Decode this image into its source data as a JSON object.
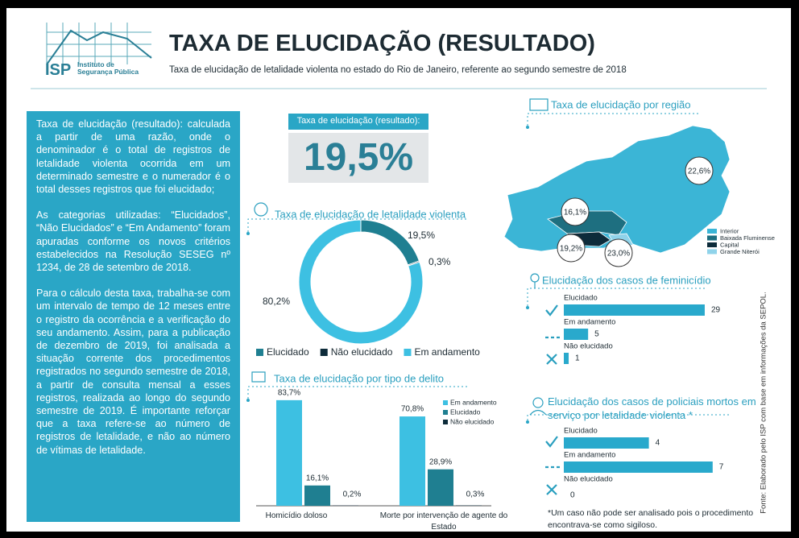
{
  "header": {
    "org_short": "ISP",
    "org_name": "Instituto de Segurança Pública",
    "title": "TAXA DE ELUCIDAÇÃO (RESULTADO)",
    "subtitle": "Taxa de elucidação de letalidade violenta no estado do Rio de Janeiro, referente ao segundo semestre de 2018"
  },
  "sidebar": {
    "paragraphs": [
      "Taxa de elucidação (resultado): calculada a partir de uma razão, onde o denominador é o total de registros de letalidade violenta ocorrida em um determinado semestre e o numerador é o total desses registros que foi elucidado;",
      "As categorias utilizadas: “Elucidados”, “Não Elucidados” e “Em Andamento” foram apuradas conforme os novos critérios estabelecidos na Resolução SESEG nº 1234, de 28 de setembro de 2018.",
      "Para o cálculo desta taxa, trabalha-se com um intervalo de tempo de 12 meses entre o registro da ocorrência e a verificação do seu andamento. Assim, para a publicação de dezembro de 2019, foi analisada a situação corrente dos procedimentos registrados no segundo semestre de 2018, a partir de consulta mensal a esses registros, realizada ao longo do segundo semestre de 2019. É importante reforçar que a taxa refere-se ao número de registros de letalidade, e não ao número de vítimas de letalidade."
    ]
  },
  "kpi": {
    "label": "Taxa de elucidação (resultado):",
    "value": "19,5%"
  },
  "source": "Fonte: Elaborado pelo ISP com base em informações da SEPOL.",
  "chart_data": [
    {
      "type": "donut",
      "title": "Taxa de elucidação de letalidade violenta",
      "categories": [
        "Elucidado",
        "Não elucidado",
        "Em andamento"
      ],
      "values": [
        19.5,
        0.3,
        80.2
      ],
      "value_labels": [
        "19,5%",
        "0,3%",
        "80,2%"
      ],
      "colors": [
        "#1f7f91",
        "#0d2b3a",
        "#3dc0e2"
      ]
    },
    {
      "type": "bar",
      "title": "Taxa de elucidação por tipo de delito",
      "categories": [
        "Homicídio doloso",
        "Morte por intervenção de agente do Estado"
      ],
      "series": [
        {
          "name": "Em andamento",
          "color": "#3dc0e2",
          "values": [
            83.7,
            70.8
          ],
          "value_labels": [
            "83,7%",
            "70,8%"
          ]
        },
        {
          "name": "Elucidado",
          "color": "#1f7f91",
          "values": [
            16.1,
            28.9
          ],
          "value_labels": [
            "16,1%",
            "28,9%"
          ]
        },
        {
          "name": "Não elucidado",
          "color": "#0d2b3a",
          "values": [
            0.2,
            0.3
          ],
          "value_labels": [
            "0,2%",
            "0,3%"
          ]
        }
      ],
      "ylim": [
        0,
        90
      ]
    },
    {
      "type": "map",
      "title": "Taxa de elucidação por região",
      "categories": [
        "Interior",
        "Baixada Fluminense",
        "Capital",
        "Grande Niterói"
      ],
      "values": [
        22.6,
        16.1,
        19.2,
        23.0
      ],
      "value_labels": [
        "22,6%",
        "16,1%",
        "19,2%",
        "23,0%"
      ],
      "colors": [
        "#3bb5d6",
        "#1e6f80",
        "#0d2b3a",
        "#8fd3ea"
      ]
    },
    {
      "type": "hbar",
      "title": "Elucidação dos casos de feminicídio",
      "categories": [
        "Elucidado",
        "Em andamento",
        "Não elucidado"
      ],
      "values": [
        29,
        5,
        1
      ],
      "color": "#29a9cc",
      "xlim": [
        0,
        30
      ]
    },
    {
      "type": "hbar",
      "title": "Elucidação dos casos de policiais mortos em serviço por letalidade violenta *",
      "categories": [
        "Elucidado",
        "Em andamento",
        "Não elucidado"
      ],
      "values": [
        4,
        7,
        0
      ],
      "color": "#29a9cc",
      "xlim": [
        0,
        7.5
      ],
      "note": "*Um caso não pode ser analisado pois o procedimento encontrava-se como sigiloso."
    }
  ]
}
